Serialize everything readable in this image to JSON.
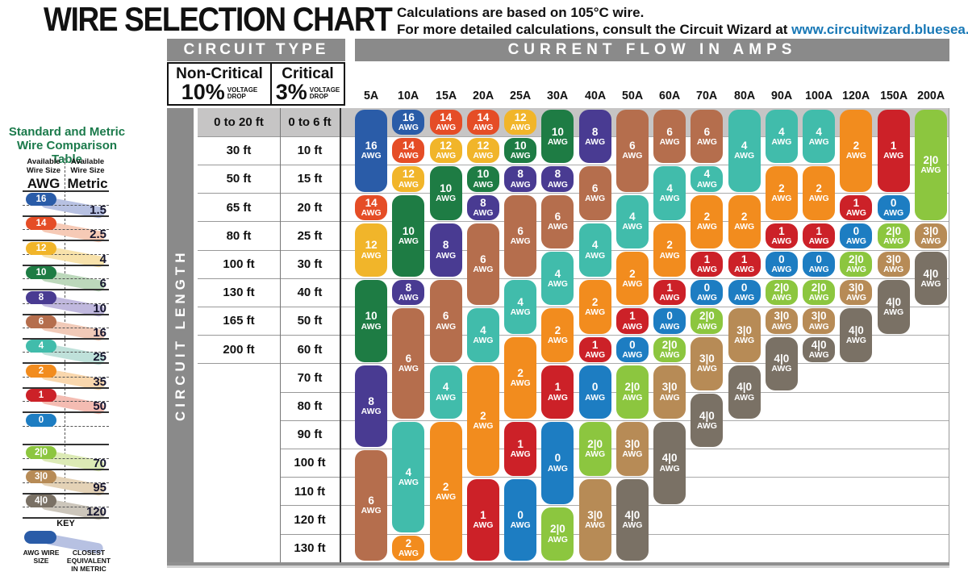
{
  "title": "WIRE SELECTION CHART",
  "subtitle_line1": "Calculations are based on 105°C wire.",
  "subtitle_line2_prefix": "For more detailed calculations, consult the Circuit Wizard at ",
  "subtitle_link": "www.circuitwizard.bluesea.com",
  "link_color": "#1878b6",
  "header_bar_color": "#8a8a8a",
  "row_band_color": "#c6c5c5",
  "chart": {
    "circuit_type_header": "CIRCUIT TYPE",
    "amps_header": "CURRENT FLOW IN AMPS",
    "non_critical_title": "Non-Critical",
    "non_critical_pct": "10%",
    "critical_title": "Critical",
    "critical_pct": "3%",
    "voltage_drop": "VOLTAGE\nDROP",
    "circuit_length_label": "CIRCUIT LENGTH",
    "awg_suffix": "AWG"
  },
  "wire_colors": {
    "16": "#2a5ca8",
    "14": "#e54d26",
    "12": "#f1b52a",
    "10": "#1e7c44",
    "8": "#493b92",
    "6": "#b56e4d",
    "4": "#41bcab",
    "2": "#f28c1e",
    "1": "#cc2128",
    "0": "#1d7dc2",
    "2|0": "#8cc63f",
    "3|0": "#b78b56",
    "4|0": "#7a7165"
  },
  "swash_colors": {
    "16": "#b7c1e2",
    "14": "#f6cab6",
    "12": "#f8e2ab",
    "10": "#bcd8bb",
    "8": "#c0b8de",
    "6": "#f1cab8",
    "4": "#bfe1da",
    "2": "#f9d7ad",
    "1": "#f4bcb2",
    "0": "",
    "2|0": "#dceab5",
    "3|0": "#e4d2b6",
    "4|0": "#ccc6bb"
  },
  "chart_data": {
    "type": "table",
    "title": "WIRE SELECTION CHART",
    "x_axis": "CURRENT FLOW IN AMPS",
    "y_axis": "CIRCUIT LENGTH",
    "columns": [
      "5A",
      "10A",
      "15A",
      "20A",
      "25A",
      "30A",
      "40A",
      "50A",
      "60A",
      "70A",
      "80A",
      "90A",
      "100A",
      "120A",
      "150A",
      "200A"
    ],
    "rows_non_critical_10pct": [
      "0 to 20 ft",
      "30 ft",
      "50 ft",
      "65 ft",
      "80 ft",
      "100 ft",
      "130 ft",
      "165 ft",
      "200 ft",
      "",
      "",
      "",
      "",
      "",
      "",
      ""
    ],
    "rows_critical_3pct": [
      "0 to 6 ft",
      "10 ft",
      "15 ft",
      "20 ft",
      "25 ft",
      "30 ft",
      "40 ft",
      "50 ft",
      "60 ft",
      "70 ft",
      "80 ft",
      "90 ft",
      "100 ft",
      "110 ft",
      "120 ft",
      "130 ft"
    ],
    "cells": [
      {
        "amp": "5A",
        "spans": [
          [
            "16",
            1,
            3
          ],
          [
            "14",
            4,
            4
          ],
          [
            "12",
            5,
            6
          ],
          [
            "10",
            7,
            9
          ],
          [
            "8",
            10,
            12
          ],
          [
            "6",
            13,
            16
          ]
        ]
      },
      {
        "amp": "10A",
        "spans": [
          [
            "16",
            1,
            1
          ],
          [
            "14",
            2,
            2
          ],
          [
            "12",
            3,
            3
          ],
          [
            "10",
            4,
            6
          ],
          [
            "8",
            7,
            7
          ],
          [
            "6",
            8,
            11
          ],
          [
            "4",
            12,
            15
          ],
          [
            "2",
            16,
            16
          ]
        ]
      },
      {
        "amp": "15A",
        "spans": [
          [
            "14",
            1,
            1
          ],
          [
            "12",
            2,
            2
          ],
          [
            "10",
            3,
            4
          ],
          [
            "8",
            5,
            6
          ],
          [
            "6",
            7,
            9
          ],
          [
            "4",
            10,
            11
          ],
          [
            "2",
            12,
            16
          ]
        ]
      },
      {
        "amp": "20A",
        "spans": [
          [
            "14",
            1,
            1
          ],
          [
            "12",
            2,
            2
          ],
          [
            "10",
            3,
            3
          ],
          [
            "8",
            4,
            4
          ],
          [
            "6",
            5,
            7
          ],
          [
            "4",
            8,
            9
          ],
          [
            "2",
            10,
            13
          ],
          [
            "1",
            14,
            16
          ]
        ]
      },
      {
        "amp": "25A",
        "spans": [
          [
            "12",
            1,
            1
          ],
          [
            "10",
            2,
            2
          ],
          [
            "8",
            3,
            3
          ],
          [
            "6",
            4,
            6
          ],
          [
            "4",
            7,
            8
          ],
          [
            "2",
            9,
            11
          ],
          [
            "1",
            12,
            13
          ],
          [
            "0",
            14,
            16
          ]
        ]
      },
      {
        "amp": "30A",
        "spans": [
          [
            "10",
            1,
            2
          ],
          [
            "8",
            3,
            3
          ],
          [
            "6",
            4,
            5
          ],
          [
            "4",
            6,
            7
          ],
          [
            "2",
            8,
            9
          ],
          [
            "1",
            10,
            11
          ],
          [
            "0",
            12,
            14
          ],
          [
            "2|0",
            15,
            16
          ]
        ]
      },
      {
        "amp": "40A",
        "spans": [
          [
            "8",
            1,
            2
          ],
          [
            "6",
            3,
            4
          ],
          [
            "4",
            5,
            6
          ],
          [
            "2",
            7,
            8
          ],
          [
            "1",
            9,
            9
          ],
          [
            "0",
            10,
            11
          ],
          [
            "2|0",
            12,
            13
          ],
          [
            "3|0",
            14,
            16
          ]
        ]
      },
      {
        "amp": "50A",
        "spans": [
          [
            "6",
            1,
            3
          ],
          [
            "4",
            4,
            5
          ],
          [
            "2",
            6,
            7
          ],
          [
            "1",
            8,
            8
          ],
          [
            "0",
            9,
            9
          ],
          [
            "2|0",
            10,
            11
          ],
          [
            "3|0",
            12,
            13
          ],
          [
            "4|0",
            14,
            16
          ]
        ]
      },
      {
        "amp": "60A",
        "spans": [
          [
            "6",
            1,
            2
          ],
          [
            "4",
            3,
            4
          ],
          [
            "2",
            5,
            6
          ],
          [
            "1",
            7,
            7
          ],
          [
            "0",
            8,
            8
          ],
          [
            "2|0",
            9,
            9
          ],
          [
            "3|0",
            10,
            11
          ],
          [
            "4|0",
            12,
            14
          ]
        ]
      },
      {
        "amp": "70A",
        "spans": [
          [
            "6",
            1,
            2
          ],
          [
            "4",
            3,
            3
          ],
          [
            "2",
            4,
            5
          ],
          [
            "1",
            6,
            6
          ],
          [
            "0",
            7,
            7
          ],
          [
            "2|0",
            8,
            8
          ],
          [
            "3|0",
            9,
            10
          ],
          [
            "4|0",
            11,
            12
          ]
        ]
      },
      {
        "amp": "80A",
        "spans": [
          [
            "4",
            1,
            3
          ],
          [
            "2",
            4,
            5
          ],
          [
            "1",
            6,
            6
          ],
          [
            "0",
            7,
            7
          ],
          [
            "3|0",
            8,
            9
          ],
          [
            "4|0",
            10,
            11
          ]
        ]
      },
      {
        "amp": "90A",
        "spans": [
          [
            "4",
            1,
            2
          ],
          [
            "2",
            3,
            4
          ],
          [
            "1",
            5,
            5
          ],
          [
            "0",
            6,
            6
          ],
          [
            "2|0",
            7,
            7
          ],
          [
            "3|0",
            8,
            8
          ],
          [
            "4|0",
            9,
            10
          ]
        ]
      },
      {
        "amp": "100A",
        "spans": [
          [
            "4",
            1,
            2
          ],
          [
            "2",
            3,
            4
          ],
          [
            "1",
            5,
            5
          ],
          [
            "0",
            6,
            6
          ],
          [
            "2|0",
            7,
            7
          ],
          [
            "3|0",
            8,
            8
          ],
          [
            "4|0",
            9,
            9
          ]
        ]
      },
      {
        "amp": "120A",
        "spans": [
          [
            "2",
            1,
            3
          ],
          [
            "1",
            4,
            4
          ],
          [
            "0",
            5,
            5
          ],
          [
            "2|0",
            6,
            6
          ],
          [
            "3|0",
            7,
            7
          ],
          [
            "4|0",
            8,
            9
          ]
        ]
      },
      {
        "amp": "150A",
        "spans": [
          [
            "1",
            1,
            3
          ],
          [
            "0",
            4,
            4
          ],
          [
            "2|0",
            5,
            5
          ],
          [
            "3|0",
            6,
            6
          ],
          [
            "4|0",
            7,
            8
          ]
        ]
      },
      {
        "amp": "200A",
        "spans": [
          [
            "2|0",
            1,
            4
          ],
          [
            "3|0",
            5,
            5
          ],
          [
            "4|0",
            6,
            7
          ]
        ]
      }
    ]
  },
  "comparison_table": {
    "title_line1": "Standard and Metric",
    "title_line2": "Wire Comparison Table",
    "col1_header": "Available Wire Size",
    "col1_unit": "AWG",
    "col2_header": "Available Wire Size",
    "col2_unit": "Metric",
    "rows": [
      {
        "awg": "16",
        "metric": "1.5"
      },
      {
        "awg": "14",
        "metric": "2.5"
      },
      {
        "awg": "12",
        "metric": "4"
      },
      {
        "awg": "10",
        "metric": "6"
      },
      {
        "awg": "8",
        "metric": "10"
      },
      {
        "awg": "6",
        "metric": "16"
      },
      {
        "awg": "4",
        "metric": "25"
      },
      {
        "awg": "2",
        "metric": "35"
      },
      {
        "awg": "1",
        "metric": "50"
      },
      {
        "awg": "0",
        "metric": ""
      },
      {
        "awg": "2|0",
        "metric": "70"
      },
      {
        "awg": "3|0",
        "metric": "95"
      },
      {
        "awg": "4|0",
        "metric": "120"
      }
    ],
    "key": {
      "label": "KEY",
      "awg_label": "AWG WIRE SIZE",
      "metric_label": "CLOSEST EQUIVALENT IN METRIC"
    }
  }
}
